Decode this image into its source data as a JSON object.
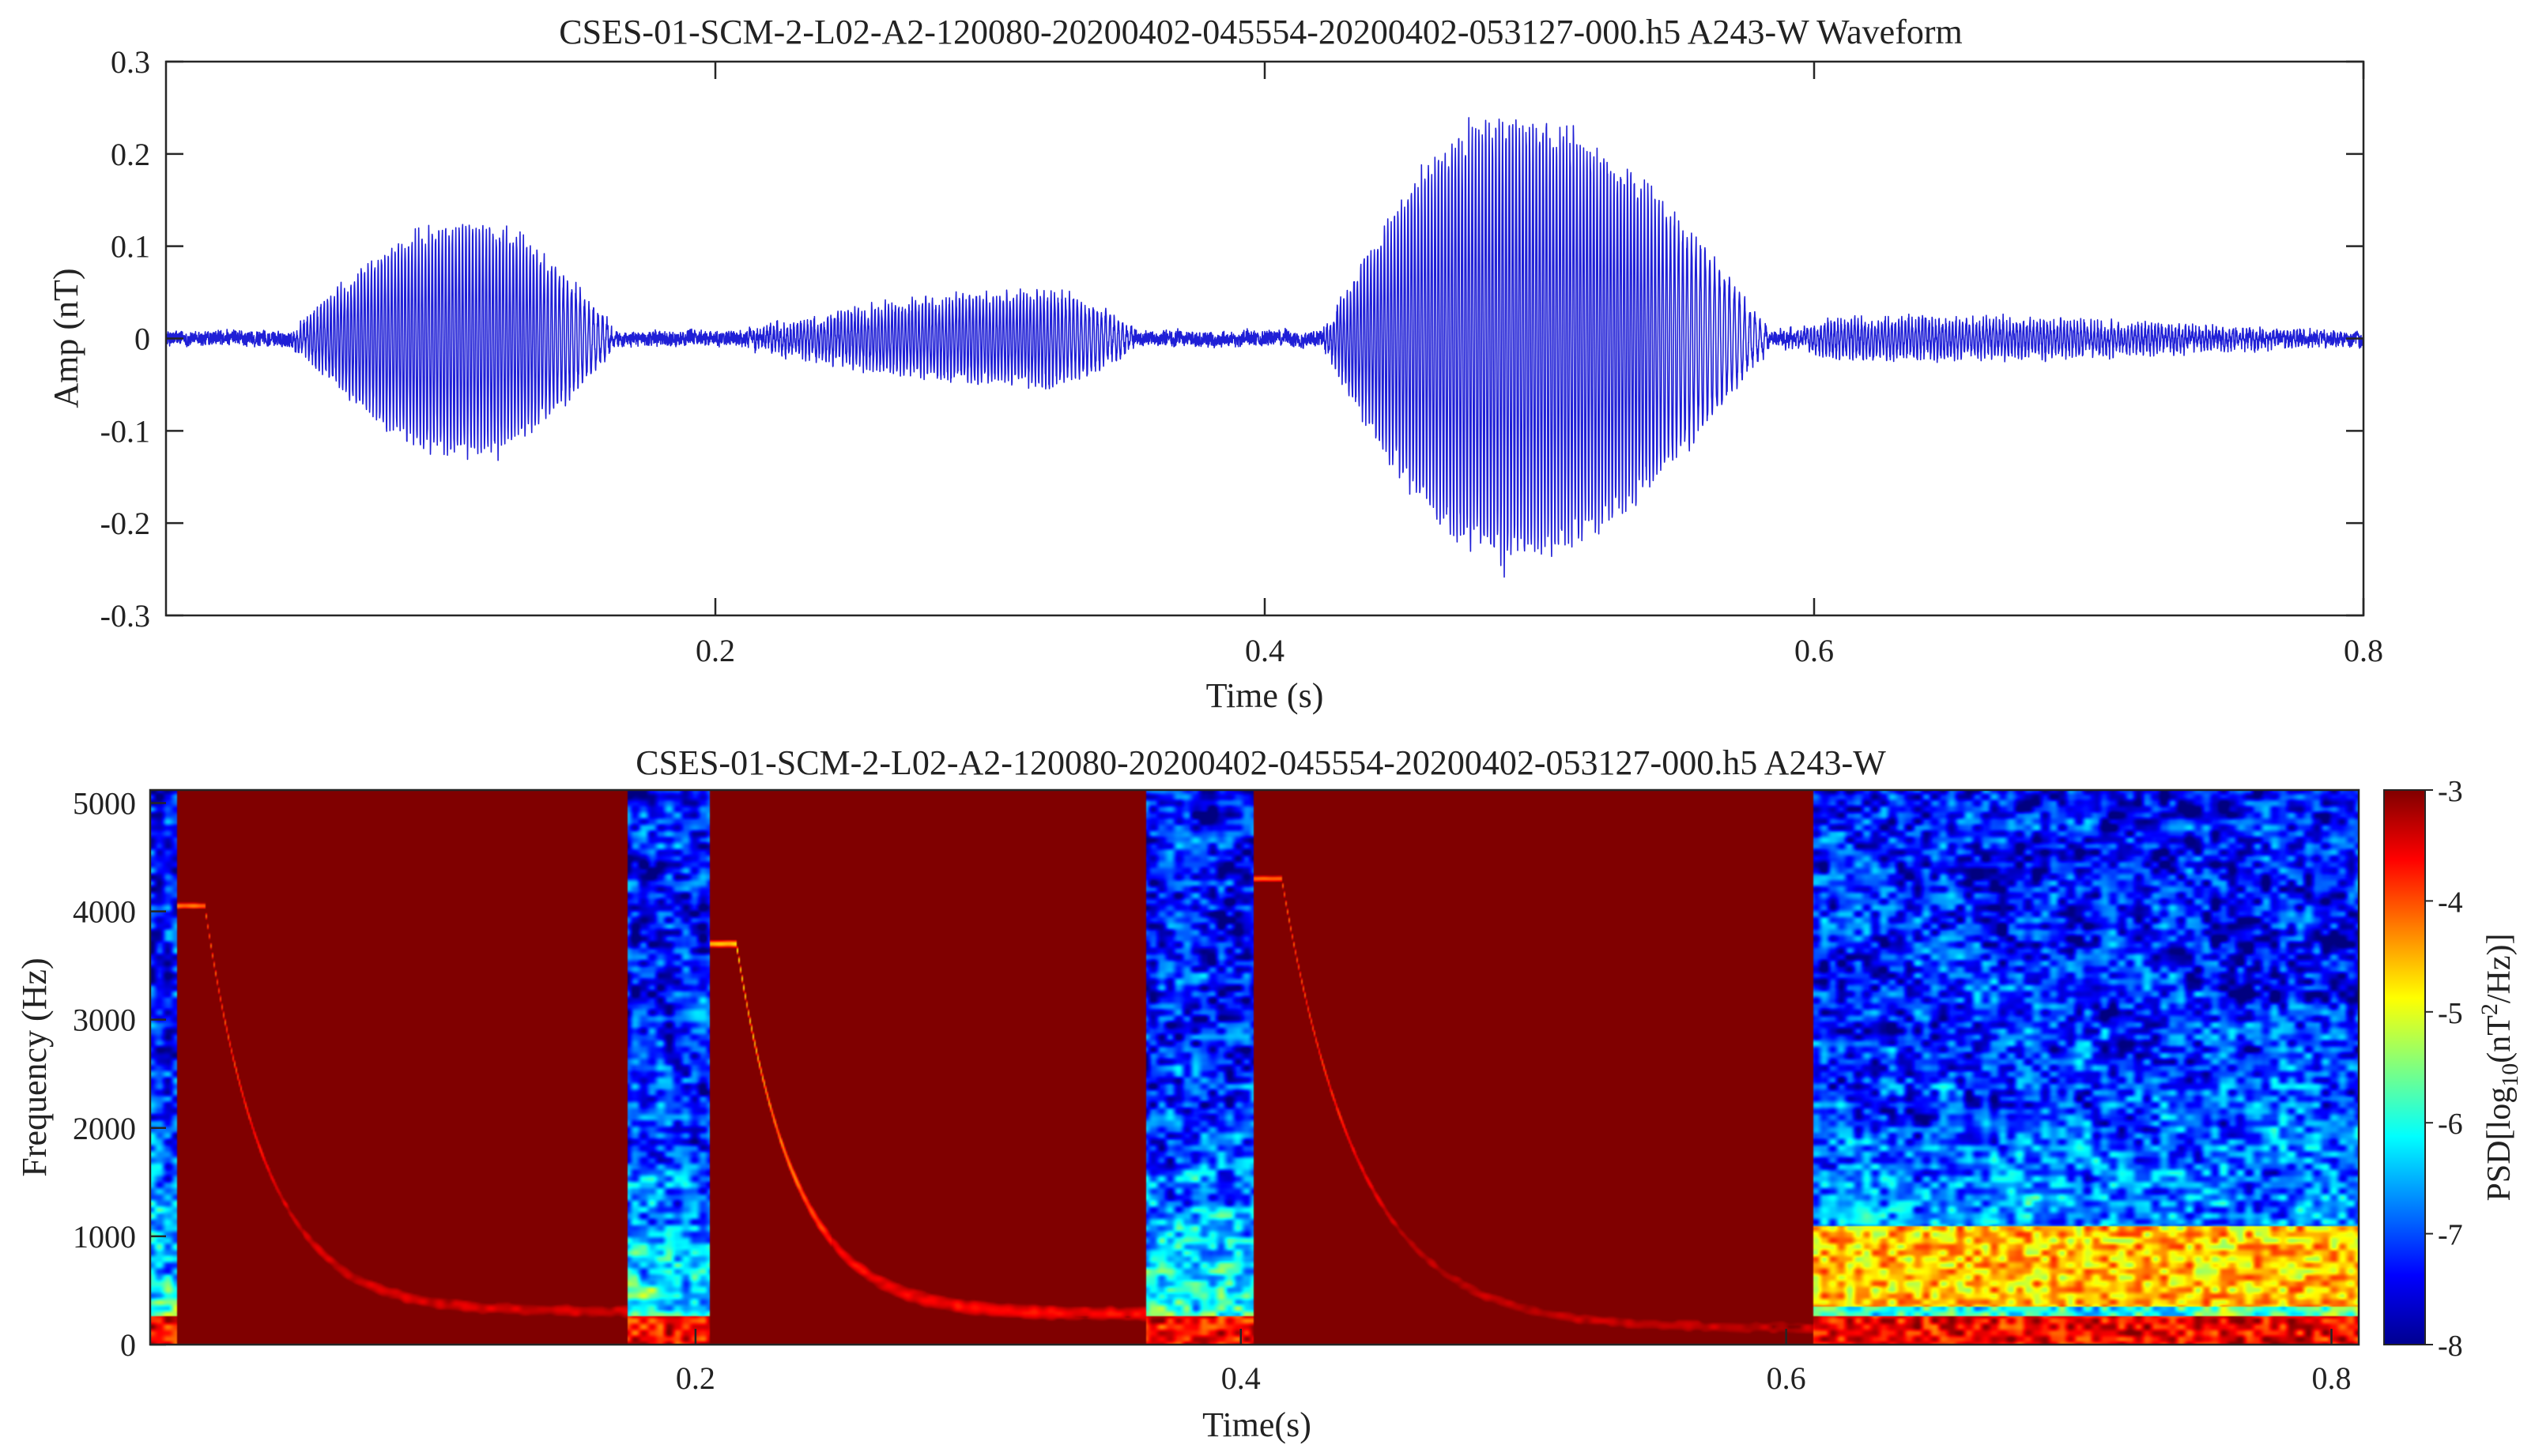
{
  "chart_data": [
    {
      "type": "line",
      "title": "CSES-01-SCM-2-L02-A2-120080-20200402-045554-20200402-053127-000.h5  A243-W Waveform",
      "xlabel": "Time (s)",
      "ylabel": "Amp (nT)",
      "xlim": [
        0,
        0.8
      ],
      "ylim": [
        -0.3,
        0.3
      ],
      "x_ticks": [
        {
          "value": 0.2,
          "label": "0.2"
        },
        {
          "value": 0.4,
          "label": "0.4"
        },
        {
          "value": 0.6,
          "label": "0.6"
        },
        {
          "value": 0.8,
          "label": "0.8"
        }
      ],
      "y_ticks": [
        {
          "value": 0.3,
          "label": "0.3"
        },
        {
          "value": 0.2,
          "label": "0.2"
        },
        {
          "value": 0.1,
          "label": "0.1"
        },
        {
          "value": 0,
          "label": "0"
        },
        {
          "value": -0.1,
          "label": "-0.1"
        },
        {
          "value": -0.2,
          "label": "-0.2"
        },
        {
          "value": -0.3,
          "label": "-0.3"
        }
      ],
      "line_color": "#1f1fd6",
      "noise_amplitude": 0.012,
      "bursts": [
        {
          "t_start": 0.045,
          "t_peak": 0.11,
          "t_end": 0.165,
          "amplitude": 0.13,
          "f_start_hz": 3900,
          "f_end_hz": 220
        },
        {
          "t_start": 0.205,
          "t_peak": 0.32,
          "t_end": 0.355,
          "amplitude": 0.05,
          "f_start_hz": 3600,
          "f_end_hz": 260
        },
        {
          "t_start": 0.42,
          "t_peak": 0.49,
          "t_end": 0.585,
          "amplitude": 0.25,
          "f_start_hz": 4200,
          "f_end_hz": 150
        },
        {
          "t_start": 0.585,
          "t_peak": 0.62,
          "t_end": 0.8,
          "amplitude": 0.02,
          "f_start_hz": 900,
          "f_end_hz": 600
        }
      ],
      "grid": false
    },
    {
      "type": "heatmap",
      "title": "CSES-01-SCM-2-L02-A2-120080-20200402-045554-20200402-053127-000.h5  A243-W",
      "xlabel": "Time(s)",
      "ylabel": "Frequency (Hz)",
      "xlim": [
        0,
        0.81
      ],
      "ylim": [
        0,
        5120
      ],
      "x_ticks": [
        {
          "value": 0.2,
          "label": "0.2"
        },
        {
          "value": 0.4,
          "label": "0.4"
        },
        {
          "value": 0.6,
          "label": "0.6"
        },
        {
          "value": 0.8,
          "label": "0.8"
        }
      ],
      "y_ticks": [
        {
          "value": 0,
          "label": "0"
        },
        {
          "value": 1000,
          "label": "1000"
        },
        {
          "value": 2000,
          "label": "2000"
        },
        {
          "value": 3000,
          "label": "3000"
        },
        {
          "value": 4000,
          "label": "4000"
        },
        {
          "value": 5000,
          "label": "5000"
        }
      ],
      "colormap": "jet",
      "colorbar": {
        "label_prefix": "PSD[log",
        "label_sub1": "10",
        "label_mid": "(nT",
        "label_sup": "2",
        "label_suffix": "/Hz)]",
        "range": [
          -8,
          -3
        ],
        "ticks": [
          {
            "value": -3,
            "label": "-3"
          },
          {
            "value": -4,
            "label": "-4"
          },
          {
            "value": -5,
            "label": "-5"
          },
          {
            "value": -6,
            "label": "-6"
          },
          {
            "value": -7,
            "label": "-7"
          },
          {
            "value": -8,
            "label": "-8"
          }
        ]
      },
      "whistler_traces": [
        {
          "t_start": 0.02,
          "t_end": 0.165,
          "f_start_hz": 4050,
          "f_end_hz": 300,
          "peak_psd": -3.0,
          "tail_psd": -3.1
        },
        {
          "t_start": 0.215,
          "t_end": 0.355,
          "f_start_hz": 3700,
          "f_end_hz": 280,
          "peak_psd": -3.5,
          "tail_psd": -3.3
        },
        {
          "t_start": 0.415,
          "t_end": 0.6,
          "f_start_hz": 4300,
          "f_end_hz": 150,
          "peak_psd": -3.0,
          "tail_psd": -3.0
        }
      ],
      "background_psd": {
        "high_freq": -7.3,
        "low_freq": -5.6,
        "bottom_band": -3.6
      },
      "grid": false
    }
  ]
}
